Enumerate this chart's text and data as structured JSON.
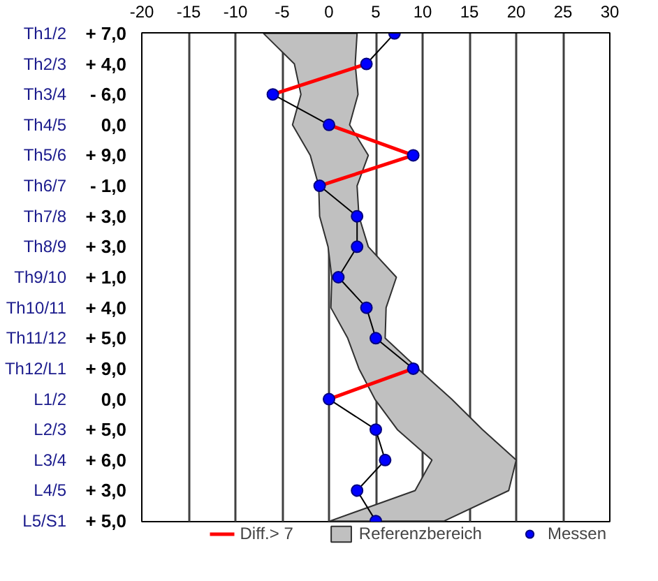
{
  "chart_data": {
    "type": "line",
    "orientation": "horizontal",
    "categories": [
      "Th1/2",
      "Th2/3",
      "Th3/4",
      "Th4/5",
      "Th5/6",
      "Th6/7",
      "Th7/8",
      "Th8/9",
      "Th9/10",
      "Th10/11",
      "Th11/12",
      "Th12/L1",
      "L1/2",
      "L2/3",
      "L3/4",
      "L4/5",
      "L5/S1"
    ],
    "value_labels": [
      "+ 7,0",
      "+ 4,0",
      "- 6,0",
      "0,0",
      "+ 9,0",
      "- 1,0",
      "+ 3,0",
      "+ 3,0",
      "+ 1,0",
      "+ 4,0",
      "+ 5,0",
      "+ 9,0",
      "0,0",
      "+ 5,0",
      "+ 6,0",
      "+ 3,0",
      "+ 5,0"
    ],
    "series": [
      {
        "name": "Diff.> 7",
        "marker": "none",
        "color": "#ff0000",
        "values": [
          null,
          4,
          -6,
          null,
          null,
          null,
          null,
          null,
          null,
          null,
          null,
          null,
          null,
          null,
          null,
          null,
          null
        ]
      },
      {
        "name": "Referenzbereich",
        "marker": "none",
        "color": "#c0c0c0",
        "values": [
          null,
          null,
          null,
          null,
          null,
          null,
          null,
          null,
          null,
          null,
          null,
          null,
          null,
          null,
          null,
          null,
          null
        ],
        "lower": [
          -7,
          -3.7,
          -3,
          -3.9,
          -2,
          -1.1,
          -1,
          -0.1,
          0.3,
          0.2,
          2,
          3.2,
          4.9,
          7.3,
          11,
          9.2,
          0.1
        ],
        "upper": [
          3,
          2.8,
          3.1,
          2.2,
          4.2,
          3,
          3.2,
          4.2,
          7.2,
          6.1,
          6,
          9.5,
          13.1,
          16.4,
          20,
          19.2,
          12.3
        ]
      },
      {
        "name": "Messen",
        "marker": "circle",
        "color": "#0000ff",
        "values": [
          7,
          4,
          -6,
          0,
          9,
          -1,
          3,
          3,
          1,
          4,
          5,
          9,
          0,
          5,
          6,
          3,
          5
        ]
      },
      {
        "marker": "none",
        "color": "#ff0000",
        "values": [
          null,
          null,
          null,
          0,
          9,
          -1,
          null,
          null,
          null,
          null,
          null,
          null,
          null,
          null,
          null,
          null,
          null
        ]
      },
      {
        "marker": "none",
        "color": "#ff0000",
        "values": [
          null,
          null,
          null,
          null,
          null,
          null,
          null,
          null,
          null,
          null,
          null,
          9,
          0,
          null,
          null,
          null,
          null
        ]
      }
    ],
    "xlim": [
      -20,
      30
    ],
    "xticks": [
      -20,
      -15,
      -10,
      -5,
      0,
      5,
      10,
      15,
      20,
      25,
      30
    ],
    "grid": "x",
    "legend": "bottom"
  }
}
